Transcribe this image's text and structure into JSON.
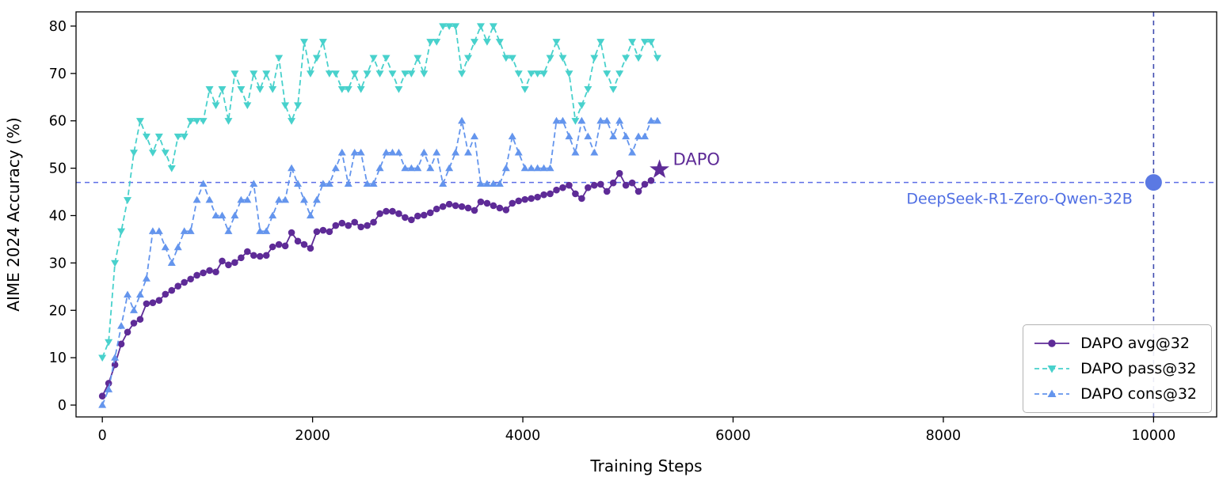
{
  "chart_data": {
    "type": "line",
    "title": "",
    "xlabel": "Training Steps",
    "ylabel": "AIME 2024 Accuracy (%)",
    "xlim": [
      -250,
      10600
    ],
    "ylim": [
      -2.5,
      83
    ],
    "x_ticks": [
      0,
      2000,
      4000,
      6000,
      8000,
      10000
    ],
    "y_ticks": [
      0,
      10,
      20,
      30,
      40,
      50,
      60,
      70,
      80
    ],
    "grid": false,
    "legend_position": "lower right",
    "x_step": 60,
    "series": [
      {
        "id": "dapo-avg32",
        "name": "DAPO avg@32",
        "color": "#5e2b97",
        "marker": "circle",
        "linestyle": "solid",
        "values": [
          1.9,
          4.6,
          8.5,
          12.9,
          15.4,
          17.3,
          18.1,
          21.4,
          21.6,
          22.1,
          23.4,
          24.2,
          25.1,
          25.9,
          26.6,
          27.4,
          27.9,
          28.4,
          28.1,
          30.4,
          29.6,
          30.1,
          31.1,
          32.4,
          31.6,
          31.4,
          31.6,
          33.4,
          33.9,
          33.6,
          36.4,
          34.6,
          33.9,
          33.1,
          36.6,
          36.9,
          36.6,
          37.9,
          38.4,
          37.9,
          38.6,
          37.6,
          37.9,
          38.6,
          40.4,
          40.9,
          40.9,
          40.4,
          39.6,
          39.1,
          39.9,
          40.1,
          40.6,
          41.4,
          41.9,
          42.4,
          42.1,
          41.9,
          41.6,
          41.1,
          42.9,
          42.6,
          42.1,
          41.6,
          41.2,
          42.6,
          43.1,
          43.4,
          43.6,
          43.9,
          44.4,
          44.6,
          45.4,
          45.9,
          46.4,
          44.6,
          43.6,
          45.9,
          46.4,
          46.6,
          45.1,
          46.9,
          48.9,
          46.4,
          46.9,
          45.1,
          46.6,
          47.4
        ]
      },
      {
        "id": "dapo-pass32",
        "name": "DAPO pass@32",
        "color": "#48d1cc",
        "marker": "triangle-down",
        "linestyle": "dashed",
        "values": [
          10,
          13.3,
          30,
          36.7,
          43.3,
          53.3,
          60,
          56.7,
          53.3,
          56.7,
          53.3,
          50,
          56.7,
          56.7,
          60,
          60,
          60,
          66.7,
          63.3,
          66.7,
          60,
          70,
          66.7,
          63.3,
          70,
          66.7,
          70,
          66.7,
          73.3,
          63.3,
          60,
          63.3,
          76.7,
          70,
          73.3,
          76.7,
          70,
          70,
          66.7,
          66.7,
          70,
          66.7,
          70,
          73.3,
          70,
          73.3,
          70,
          66.7,
          70,
          70,
          73.3,
          70,
          76.7,
          76.7,
          80,
          80,
          80,
          70,
          73.3,
          76.7,
          80,
          76.7,
          80,
          76.7,
          73.3,
          73.3,
          70,
          66.7,
          70,
          70,
          70,
          73.3,
          76.7,
          73.3,
          70,
          60,
          63.3,
          66.7,
          73.3,
          76.7,
          70,
          66.7,
          70,
          73.3,
          76.7,
          73.3,
          76.7,
          76.7,
          73.3
        ]
      },
      {
        "id": "dapo-cons32",
        "name": "DAPO cons@32",
        "color": "#6495ed",
        "marker": "triangle-up",
        "linestyle": "dashed",
        "values": [
          0,
          3.3,
          10,
          16.7,
          23.3,
          20,
          23.3,
          26.7,
          36.7,
          36.7,
          33.3,
          30,
          33.3,
          36.7,
          36.7,
          43.3,
          46.7,
          43.3,
          40,
          40,
          36.7,
          40,
          43.3,
          43.3,
          46.7,
          36.7,
          36.7,
          40,
          43.3,
          43.3,
          50,
          46.7,
          43.3,
          40,
          43.3,
          46.7,
          46.7,
          50,
          53.3,
          46.7,
          53.3,
          53.3,
          46.7,
          46.7,
          50,
          53.3,
          53.3,
          53.3,
          50,
          50,
          50,
          53.3,
          50,
          53.3,
          46.7,
          50,
          53.3,
          60,
          53.3,
          56.7,
          46.7,
          46.7,
          46.7,
          46.7,
          50,
          56.7,
          53.3,
          50,
          50,
          50,
          50,
          50,
          60,
          60,
          56.7,
          53.3,
          60,
          56.7,
          53.3,
          60,
          60,
          56.7,
          60,
          56.7,
          53.3,
          56.7,
          56.7,
          60,
          60
        ]
      }
    ],
    "annotations": {
      "dapo_star": {
        "x": 5300,
        "y": 49.7,
        "label": "DAPO",
        "color": "#5e2b97"
      },
      "baseline": {
        "y": 47,
        "label": "DeepSeek-R1-Zero-Qwen-32B",
        "line_color": "#5d6ee6",
        "label_color": "#4f6ee3",
        "label_anchor_x": 9800,
        "endpoint": {
          "x": 10000,
          "y": 47,
          "color": "#5b79e3"
        },
        "vline_x": 10000,
        "vline_color": "#3f4cb0"
      }
    }
  }
}
